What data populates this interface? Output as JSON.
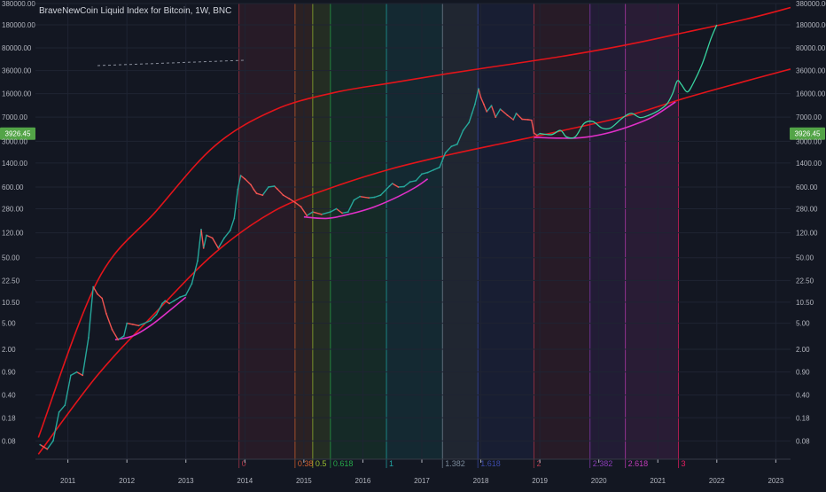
{
  "header": {
    "title": "BraveNewCoin Liquid Index for Bitcoin, 1W, BNC"
  },
  "colors": {
    "background": "#131722",
    "grid": "#1f2433",
    "axis_text": "#b2b5be",
    "channel": "#e3141a",
    "arc": "#e030c8",
    "projection": "#38d39f",
    "price_label_bg": "#53a447",
    "candle_up": "#26a69a",
    "candle_down": "#ef5350"
  },
  "chart_data": {
    "type": "line",
    "title": "BraveNewCoin Liquid Index for Bitcoin, 1W, BNC",
    "xlabel": "",
    "ylabel": "",
    "scale": "log",
    "xlim": [
      2010.45,
      2023.25
    ],
    "ylim": [
      0.042,
      380000
    ],
    "grid": true,
    "y_ticks": [
      "380000.00",
      "180000.00",
      "80000.00",
      "36000.00",
      "16000.00",
      "7000.00",
      "3000.00",
      "1400.00",
      "600.00",
      "280.00",
      "120.00",
      "50.00",
      "22.50",
      "10.50",
      "5.00",
      "2.00",
      "0.90",
      "0.40",
      "0.18",
      "0.08"
    ],
    "x_ticks": [
      "2011",
      "2012",
      "2013",
      "2014",
      "2015",
      "2016",
      "2017",
      "2018",
      "2019",
      "2020",
      "2021",
      "2022",
      "2023"
    ],
    "last_price_label": "3926.45",
    "fib_zones": [
      {
        "label": "0",
        "start": 2013.9,
        "end": 2014.85,
        "color": "#b2384a"
      },
      {
        "label": "0.38",
        "start": 2014.85,
        "end": 2015.15,
        "color": "#d4612e"
      },
      {
        "label": "0.5",
        "start": 2015.15,
        "end": 2015.45,
        "color": "#9abf2f"
      },
      {
        "label": "0.618",
        "start": 2015.45,
        "end": 2016.4,
        "color": "#26a94a"
      },
      {
        "label": "1",
        "start": 2016.4,
        "end": 2017.35,
        "color": "#22a6a6"
      },
      {
        "label": "1.382",
        "start": 2017.35,
        "end": 2017.95,
        "color": "#7a8a9a"
      },
      {
        "label": "1.618",
        "start": 2017.95,
        "end": 2018.9,
        "color": "#3c4aa8"
      },
      {
        "label": "2",
        "start": 2018.9,
        "end": 2019.85,
        "color": "#b2384a"
      },
      {
        "label": "2.382",
        "start": 2019.85,
        "end": 2020.45,
        "color": "#8a3cb8"
      },
      {
        "label": "2.618",
        "start": 2020.45,
        "end": 2021.35,
        "color": "#c03cb8"
      },
      {
        "label": "3",
        "start": 2021.35,
        "end": 2021.35,
        "color": "#e91e63"
      }
    ],
    "channel_upper": [
      [
        2010.5,
        0.09
      ],
      [
        2011.5,
        22
      ],
      [
        2012.5,
        260
      ],
      [
        2013.5,
        2600
      ],
      [
        2014.5,
        9000
      ],
      [
        2015.5,
        16500
      ],
      [
        2016.5,
        23500
      ],
      [
        2017.5,
        33000
      ],
      [
        2018.5,
        45000
      ],
      [
        2019.5,
        62000
      ],
      [
        2020.5,
        90000
      ],
      [
        2021.5,
        140000
      ],
      [
        2022.5,
        220000
      ],
      [
        2023.25,
        330000
      ]
    ],
    "channel_lower": [
      [
        2010.5,
        0.05
      ],
      [
        2011.5,
        0.8
      ],
      [
        2012.5,
        7.5
      ],
      [
        2013.5,
        60
      ],
      [
        2014.5,
        260
      ],
      [
        2015.5,
        600
      ],
      [
        2016.5,
        1150
      ],
      [
        2017.5,
        1900
      ],
      [
        2018.5,
        2950
      ],
      [
        2019.5,
        4600
      ],
      [
        2020.5,
        7400
      ],
      [
        2021.5,
        14000
      ],
      [
        2022.5,
        25000
      ],
      [
        2023.25,
        38000
      ]
    ],
    "arcs": [
      [
        [
          2011.8,
          2.8
        ],
        [
          2012.1,
          3.2
        ],
        [
          2012.4,
          4.6
        ],
        [
          2012.7,
          7.5
        ],
        [
          2013.0,
          12.5
        ]
      ],
      [
        [
          2015.0,
          210
        ],
        [
          2015.4,
          200
        ],
        [
          2015.8,
          235
        ],
        [
          2016.2,
          300
        ],
        [
          2016.6,
          430
        ],
        [
          2016.9,
          600
        ],
        [
          2017.1,
          800
        ]
      ],
      [
        [
          2018.9,
          3450
        ],
        [
          2019.3,
          3350
        ],
        [
          2019.7,
          3400
        ],
        [
          2020.1,
          3900
        ],
        [
          2020.5,
          5000
        ],
        [
          2020.9,
          7000
        ],
        [
          2021.3,
          12000
        ]
      ]
    ],
    "series": [
      {
        "values": [
          [
            2010.53,
            0.07
          ],
          [
            2010.65,
            0.06
          ],
          [
            2010.75,
            0.08
          ],
          [
            2010.85,
            0.22
          ],
          [
            2010.95,
            0.28
          ],
          [
            2011.05,
            0.8
          ],
          [
            2011.15,
            0.9
          ],
          [
            2011.25,
            0.8
          ],
          [
            2011.35,
            3
          ],
          [
            2011.43,
            18
          ],
          [
            2011.5,
            14
          ],
          [
            2011.58,
            12
          ],
          [
            2011.65,
            7
          ],
          [
            2011.75,
            4
          ],
          [
            2011.85,
            2.8
          ],
          [
            2011.95,
            3.2
          ],
          [
            2012.0,
            5
          ],
          [
            2012.1,
            4.8
          ],
          [
            2012.2,
            4.6
          ],
          [
            2012.3,
            5
          ],
          [
            2012.4,
            5.5
          ],
          [
            2012.5,
            6.8
          ],
          [
            2012.6,
            10
          ],
          [
            2012.65,
            11
          ],
          [
            2012.72,
            10
          ],
          [
            2012.8,
            11
          ],
          [
            2012.9,
            12.5
          ],
          [
            2013.0,
            13.5
          ],
          [
            2013.1,
            20
          ],
          [
            2013.2,
            45
          ],
          [
            2013.26,
            135
          ],
          [
            2013.3,
            70
          ],
          [
            2013.35,
            110
          ],
          [
            2013.45,
            100
          ],
          [
            2013.55,
            70
          ],
          [
            2013.65,
            100
          ],
          [
            2013.75,
            130
          ],
          [
            2013.82,
            200
          ],
          [
            2013.88,
            550
          ],
          [
            2013.93,
            900
          ],
          [
            2014.0,
            800
          ],
          [
            2014.1,
            650
          ],
          [
            2014.15,
            550
          ],
          [
            2014.2,
            480
          ],
          [
            2014.3,
            450
          ],
          [
            2014.4,
            600
          ],
          [
            2014.5,
            620
          ],
          [
            2014.55,
            560
          ],
          [
            2014.65,
            450
          ],
          [
            2014.75,
            400
          ],
          [
            2014.85,
            350
          ],
          [
            2014.95,
            300
          ],
          [
            2015.05,
            220
          ],
          [
            2015.15,
            250
          ],
          [
            2015.3,
            230
          ],
          [
            2015.45,
            250
          ],
          [
            2015.55,
            280
          ],
          [
            2015.65,
            240
          ],
          [
            2015.75,
            250
          ],
          [
            2015.85,
            380
          ],
          [
            2015.95,
            430
          ],
          [
            2016.1,
            410
          ],
          [
            2016.2,
            420
          ],
          [
            2016.3,
            450
          ],
          [
            2016.45,
            620
          ],
          [
            2016.5,
            680
          ],
          [
            2016.6,
            600
          ],
          [
            2016.7,
            610
          ],
          [
            2016.8,
            720
          ],
          [
            2016.9,
            750
          ],
          [
            2017.0,
            950
          ],
          [
            2017.1,
            1000
          ],
          [
            2017.2,
            1100
          ],
          [
            2017.3,
            1200
          ],
          [
            2017.4,
            2000
          ],
          [
            2017.5,
            2500
          ],
          [
            2017.6,
            2700
          ],
          [
            2017.7,
            4400
          ],
          [
            2017.8,
            5800
          ],
          [
            2017.85,
            8000
          ],
          [
            2017.9,
            11000
          ],
          [
            2017.96,
            19000
          ],
          [
            2018.0,
            14000
          ],
          [
            2018.05,
            11000
          ],
          [
            2018.1,
            8500
          ],
          [
            2018.18,
            10500
          ],
          [
            2018.25,
            7000
          ],
          [
            2018.33,
            9300
          ],
          [
            2018.45,
            7500
          ],
          [
            2018.55,
            6400
          ],
          [
            2018.6,
            8000
          ],
          [
            2018.7,
            6500
          ],
          [
            2018.8,
            6400
          ],
          [
            2018.86,
            6300
          ],
          [
            2018.9,
            4000
          ],
          [
            2018.95,
            3700
          ],
          [
            2019.0,
            3926.45
          ]
        ]
      },
      {
        "values": [
          [
            2019.0,
            3926.45
          ],
          [
            2019.2,
            3800
          ],
          [
            2019.35,
            4400
          ],
          [
            2019.45,
            3500
          ],
          [
            2019.6,
            3500
          ],
          [
            2019.75,
            5600
          ],
          [
            2019.9,
            6000
          ],
          [
            2020.05,
            4800
          ],
          [
            2020.2,
            4800
          ],
          [
            2020.4,
            6800
          ],
          [
            2020.55,
            8000
          ],
          [
            2020.7,
            6900
          ],
          [
            2020.85,
            7500
          ],
          [
            2021.0,
            8700
          ],
          [
            2021.15,
            11000
          ],
          [
            2021.25,
            16000
          ],
          [
            2021.33,
            25000
          ],
          [
            2021.4,
            22000
          ],
          [
            2021.5,
            17000
          ],
          [
            2021.6,
            23000
          ],
          [
            2021.75,
            45000
          ],
          [
            2021.9,
            110000
          ],
          [
            2022.0,
            180000
          ]
        ]
      }
    ]
  }
}
